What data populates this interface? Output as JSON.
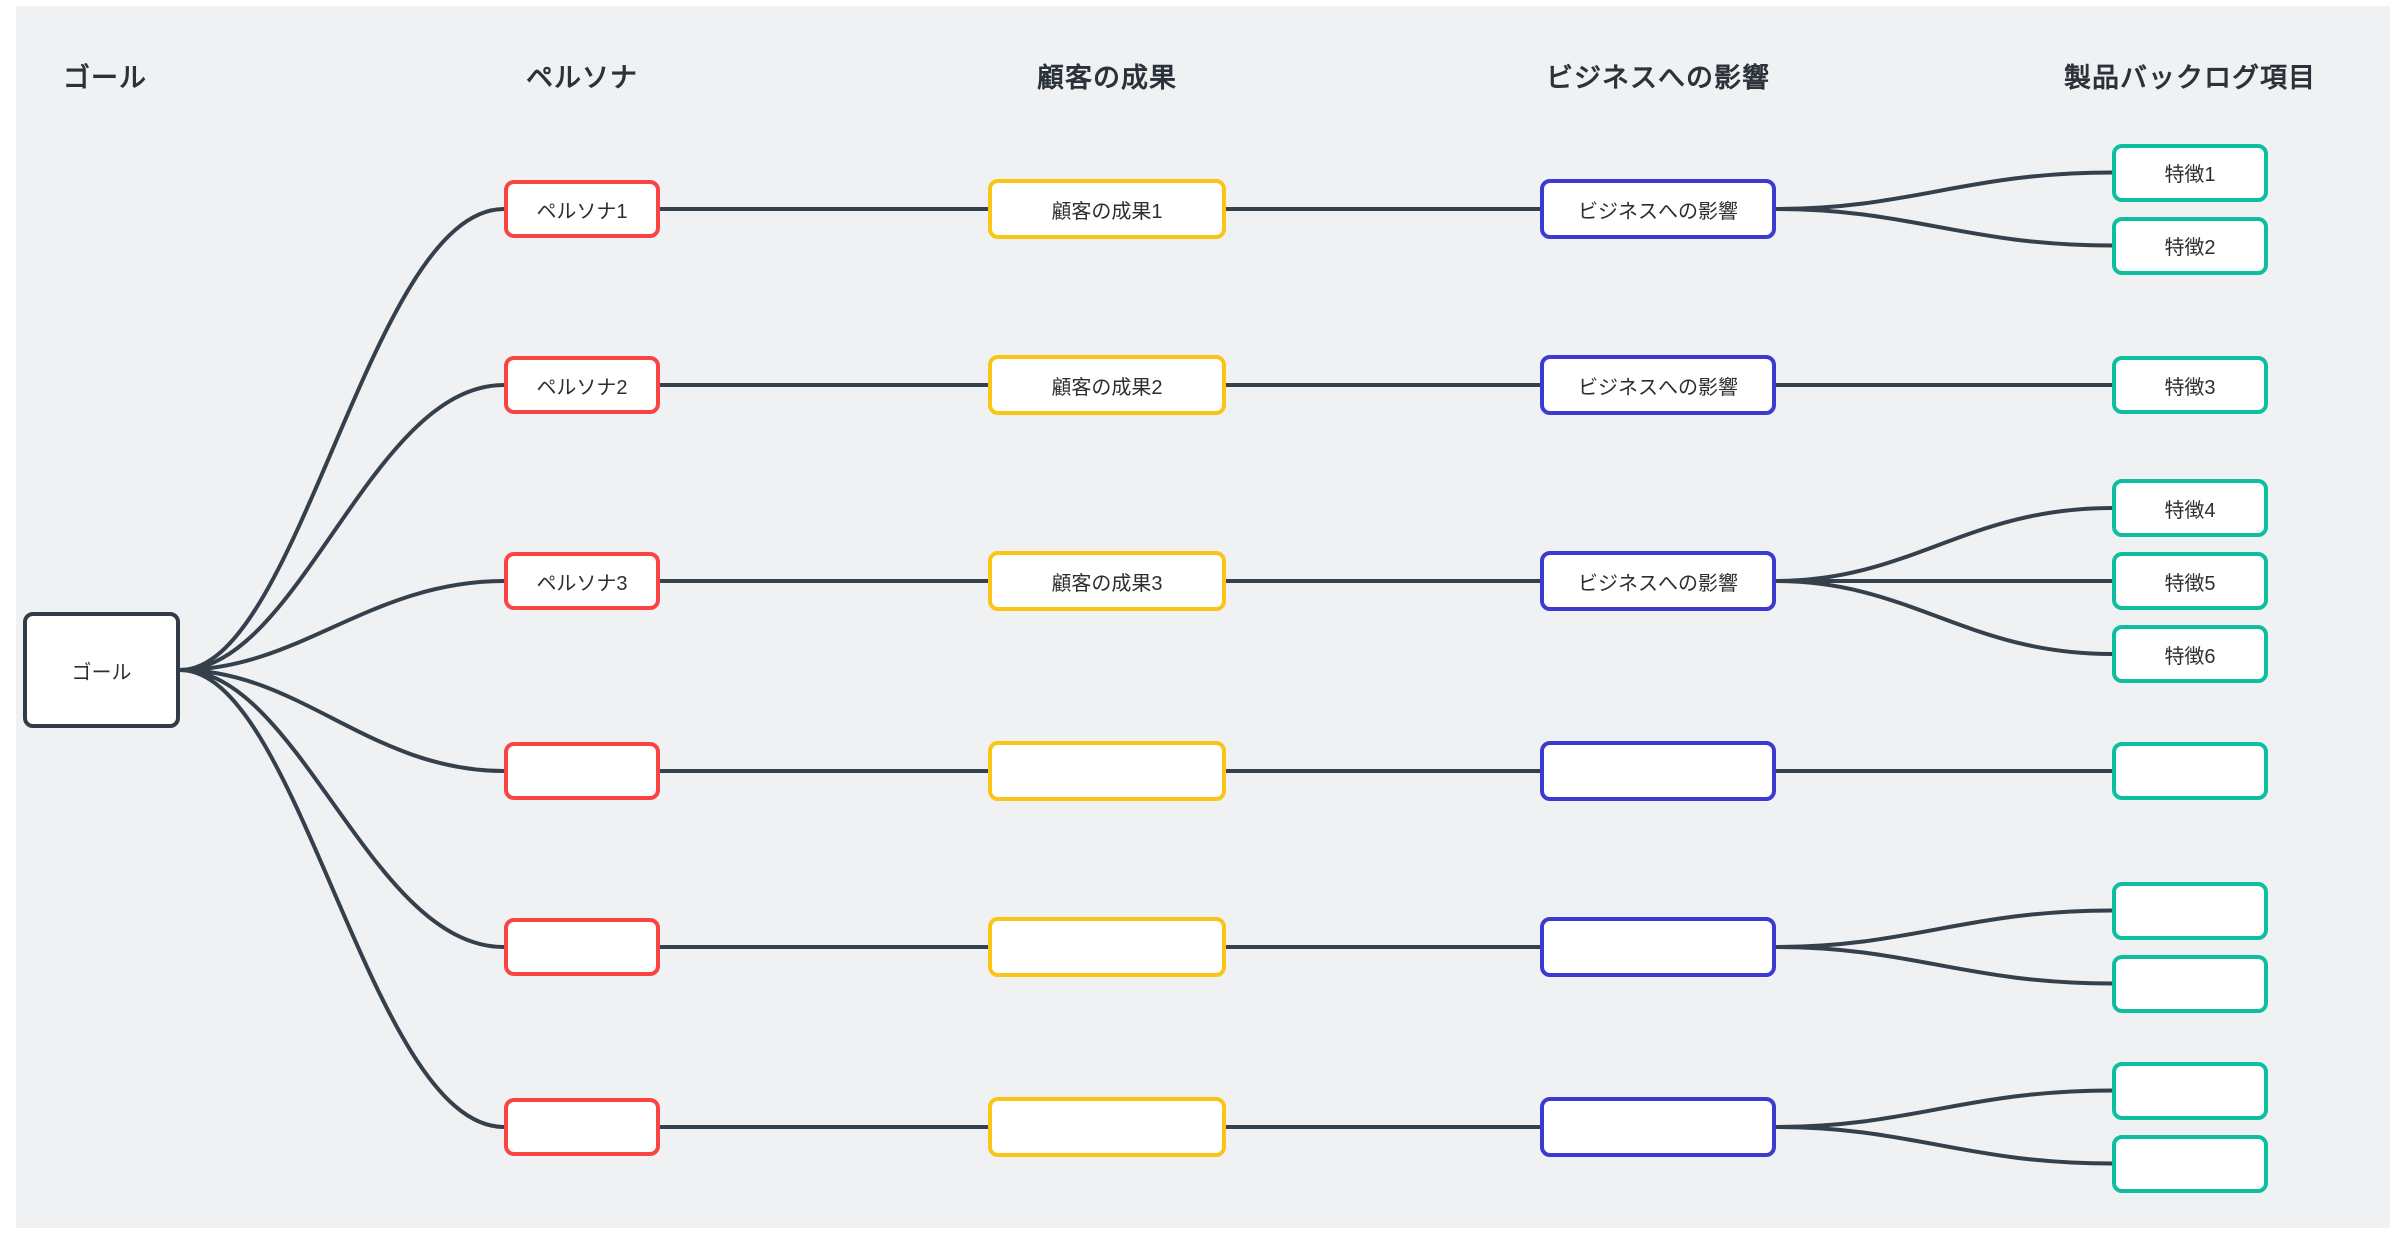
{
  "canvas": {
    "page_background": "#ffffff",
    "board_background": "#f0f1f3",
    "connector_color": "#35404d"
  },
  "columns": [
    {
      "id": "goal",
      "header": "ゴール",
      "color": "#323c49"
    },
    {
      "id": "persona",
      "header": "ペルソナ",
      "color": "#fa4343"
    },
    {
      "id": "outcome",
      "header": "顧客の成果",
      "color": "#fac517"
    },
    {
      "id": "impact",
      "header": "ビジネスへの影響",
      "color": "#3d3ad1"
    },
    {
      "id": "backlog",
      "header": "製品バックログ項目",
      "color": "#0ebf9f"
    }
  ],
  "goal": {
    "label": "ゴール"
  },
  "rows": [
    {
      "persona": "ペルソナ1",
      "outcome": "顧客の成果1",
      "impact": "ビジネスへの影響",
      "features": [
        "特徴1",
        "特徴2"
      ]
    },
    {
      "persona": "ペルソナ2",
      "outcome": "顧客の成果2",
      "impact": "ビジネスへの影響",
      "features": [
        "特徴3"
      ]
    },
    {
      "persona": "ペルソナ3",
      "outcome": "顧客の成果3",
      "impact": "ビジネスへの影響",
      "features": [
        "特徴4",
        "特徴5",
        "特徴6"
      ]
    },
    {
      "persona": "",
      "outcome": "",
      "impact": "",
      "features": [
        ""
      ]
    },
    {
      "persona": "",
      "outcome": "",
      "impact": "",
      "features": [
        "",
        ""
      ]
    },
    {
      "persona": "",
      "outcome": "",
      "impact": "",
      "features": [
        "",
        ""
      ]
    }
  ]
}
